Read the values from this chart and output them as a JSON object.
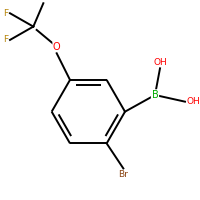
{
  "background_color": "#ffffff",
  "bond_color": "#000000",
  "atom_colors": {
    "F": "#B8860B",
    "O": "#FF0000",
    "B": "#00AA00",
    "Br": "#8B4513",
    "C": "#000000"
  },
  "figsize": [
    2.0,
    2.0
  ],
  "dpi": 100,
  "xlim": [
    -0.15,
    1.05
  ],
  "ylim": [
    -0.15,
    1.05
  ]
}
